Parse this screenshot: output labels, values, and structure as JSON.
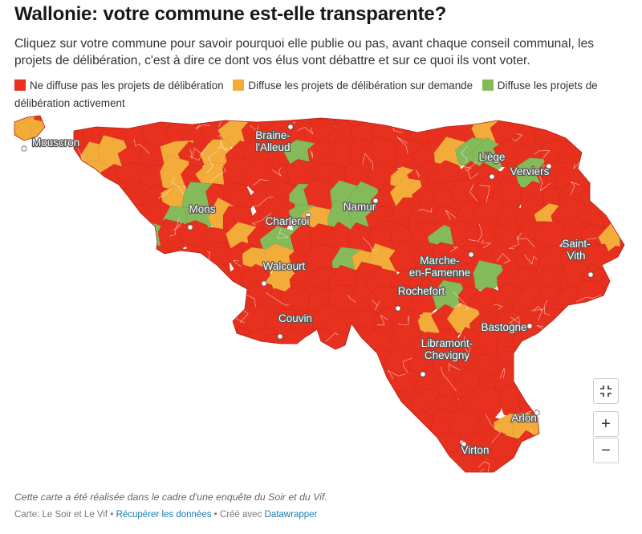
{
  "title": "Wallonie: votre commune est-elle transparente?",
  "subtitle": "Cliquez sur votre commune pour savoir pourquoi elle publie ou pas, avant chaque conseil communal, les projets de délibération, c'est à dire ce dont vos élus vont débattre et sur ce quoi ils vont voter.",
  "legend": [
    {
      "label": "Ne diffuse pas les projets de délibération",
      "color": "#e8301e"
    },
    {
      "label": "Diffuse les projets de délibération sur demande",
      "color": "#f3ac3a"
    },
    {
      "label": "Diffuse les projets de délibération activement",
      "color": "#84ba5a"
    }
  ],
  "cities": [
    {
      "lines": [
        "Mouscron"
      ]
    },
    {
      "lines": [
        "Braine-",
        "l'Alleud"
      ]
    },
    {
      "lines": [
        "Liège"
      ]
    },
    {
      "lines": [
        "Verviers"
      ]
    },
    {
      "lines": [
        "Namur"
      ]
    },
    {
      "lines": [
        "Mons"
      ]
    },
    {
      "lines": [
        "Charleroi"
      ]
    },
    {
      "lines": [
        "Walcourt"
      ]
    },
    {
      "lines": [
        "Marche-",
        "en-Famenne"
      ]
    },
    {
      "lines": [
        "Saint-",
        "Vith"
      ]
    },
    {
      "lines": [
        "Rochefort"
      ]
    },
    {
      "lines": [
        "Bastogne"
      ]
    },
    {
      "lines": [
        "Couvin"
      ]
    },
    {
      "lines": [
        "Libramont-",
        "Chevigny"
      ]
    },
    {
      "lines": [
        "Arlon"
      ]
    },
    {
      "lines": [
        "Virton"
      ]
    }
  ],
  "controls": {
    "fullscreen_icon": "fullscreen-icon",
    "zoom_in": "+",
    "zoom_out": "−"
  },
  "notes": "Cette carte a été réalisée dans le cadre d'une enquête du Soir et du Vif.",
  "byline": {
    "source": "Carte: Le Soir et Le Vif",
    "sep1": " • ",
    "data_link": "Récupérer les données",
    "sep2": " • Créé avec ",
    "tool_link": "Datawrapper"
  }
}
